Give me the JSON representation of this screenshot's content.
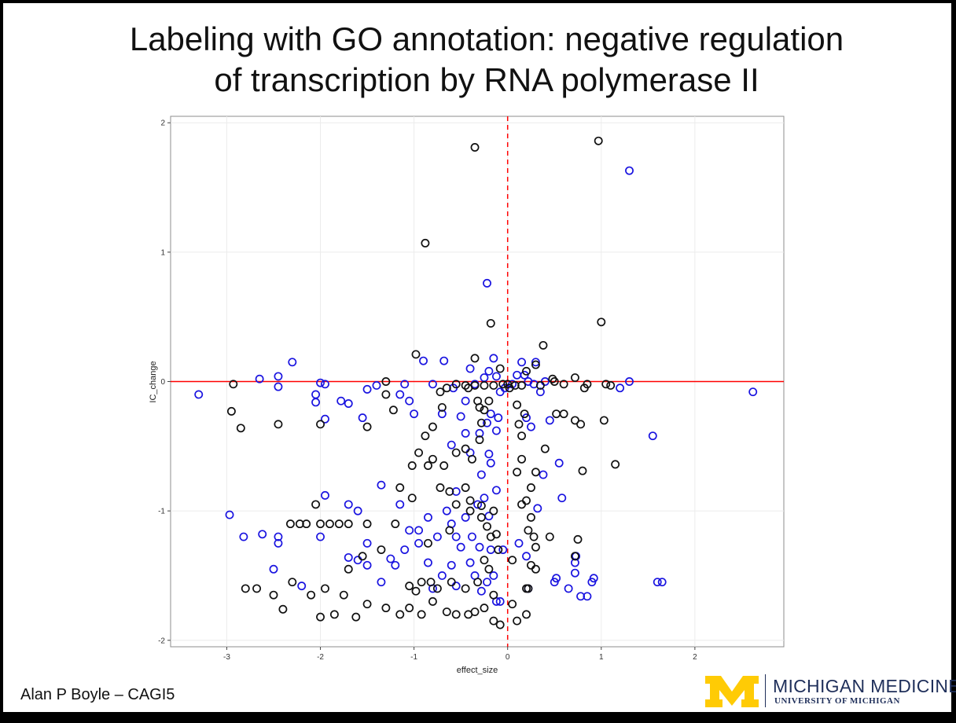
{
  "slide": {
    "title_line1": "Labeling with GO annotation: negative regulation",
    "title_line2": "of transcription by RNA polymerase II",
    "author": "Alan P Boyle – CAGI5",
    "logo": {
      "name": "MICHIGAN MEDICINE",
      "sub": "UNIVERSITY OF MICHIGAN",
      "mark": "M",
      "mark_color": "#FFCB05"
    }
  },
  "chart_data": {
    "type": "scatter",
    "xlabel": "effect_size",
    "ylabel": "IC_change",
    "xlim": [
      -3.6,
      2.95
    ],
    "ylim": [
      -2.05,
      2.05
    ],
    "xticks": [
      -3,
      -2,
      -1,
      0,
      1,
      2
    ],
    "yticks": [
      -2,
      -1,
      0,
      1,
      2
    ],
    "grid": true,
    "legend": "none",
    "reference_lines": [
      {
        "axis": "y",
        "value": 0,
        "style": "solid",
        "color": "#ff0000"
      },
      {
        "axis": "x",
        "value": 0,
        "style": "dashed",
        "color": "#ff0000"
      }
    ],
    "colors": {
      "annotated": "#1a14e0",
      "other": "#111111"
    },
    "series": [
      {
        "key": "annotated",
        "points": [
          [
            -3.3,
            -0.1
          ],
          [
            -2.3,
            0.15
          ],
          [
            -2.45,
            0.04
          ],
          [
            -2.65,
            0.02
          ],
          [
            -2.45,
            -0.04
          ],
          [
            -2.0,
            -0.01
          ],
          [
            -1.95,
            -0.02
          ],
          [
            -2.05,
            -0.1
          ],
          [
            -2.05,
            -0.16
          ],
          [
            -1.95,
            -0.29
          ],
          [
            -1.78,
            -0.15
          ],
          [
            -1.7,
            -0.17
          ],
          [
            -1.55,
            -0.28
          ],
          [
            -1.5,
            -0.06
          ],
          [
            -1.4,
            -0.03
          ],
          [
            -1.15,
            -0.1
          ],
          [
            -1.1,
            -0.02
          ],
          [
            -1.05,
            -0.15
          ],
          [
            -1.0,
            -0.25
          ],
          [
            -0.9,
            0.16
          ],
          [
            -0.8,
            -0.02
          ],
          [
            -0.68,
            0.16
          ],
          [
            -0.5,
            -0.27
          ],
          [
            -0.4,
            0.1
          ],
          [
            -0.25,
            0.03
          ],
          [
            -0.2,
            0.08
          ],
          [
            -0.15,
            0.18
          ],
          [
            -0.12,
            0.04
          ],
          [
            -0.08,
            -0.08
          ],
          [
            -0.18,
            -0.25
          ],
          [
            -0.12,
            -0.38
          ],
          [
            -0.3,
            -0.4
          ],
          [
            -0.22,
            -0.32
          ],
          [
            -0.45,
            -0.4
          ],
          [
            -0.6,
            -0.49
          ],
          [
            -0.2,
            -0.56
          ],
          [
            -0.18,
            -0.63
          ],
          [
            -0.28,
            -0.72
          ],
          [
            -0.12,
            -0.84
          ],
          [
            -0.32,
            -0.95
          ],
          [
            -0.2,
            -1.04
          ],
          [
            -0.45,
            -1.05
          ],
          [
            -0.55,
            -1.2
          ],
          [
            -0.6,
            -1.1
          ],
          [
            -0.75,
            -1.2
          ],
          [
            -0.85,
            -1.05
          ],
          [
            -0.95,
            -1.15
          ],
          [
            -1.05,
            -1.15
          ],
          [
            -1.15,
            -0.95
          ],
          [
            -1.35,
            -0.8
          ],
          [
            -1.5,
            -1.25
          ],
          [
            -1.6,
            -1.0
          ],
          [
            -1.7,
            -0.95
          ],
          [
            -1.95,
            -0.88
          ],
          [
            -2.0,
            -1.2
          ],
          [
            -2.45,
            -1.2
          ],
          [
            -2.45,
            -1.25
          ],
          [
            -2.62,
            -1.18
          ],
          [
            -2.82,
            -1.2
          ],
          [
            -2.97,
            -1.03
          ],
          [
            -2.5,
            -1.45
          ],
          [
            -2.2,
            -1.58
          ],
          [
            -1.7,
            -1.36
          ],
          [
            -1.6,
            -1.38
          ],
          [
            -1.5,
            -1.42
          ],
          [
            -1.35,
            -1.55
          ],
          [
            -1.25,
            -1.37
          ],
          [
            -1.2,
            -1.42
          ],
          [
            -1.1,
            -1.3
          ],
          [
            -0.95,
            -1.25
          ],
          [
            -0.85,
            -1.4
          ],
          [
            -0.8,
            -1.6
          ],
          [
            -0.7,
            -1.5
          ],
          [
            -0.6,
            -1.42
          ],
          [
            -0.55,
            -1.58
          ],
          [
            -0.4,
            -1.4
          ],
          [
            -0.35,
            -1.5
          ],
          [
            -0.28,
            -1.62
          ],
          [
            -0.22,
            -1.55
          ],
          [
            -0.15,
            -1.5
          ],
          [
            -0.12,
            -1.7
          ],
          [
            -0.08,
            -1.7
          ],
          [
            -0.05,
            -1.3
          ],
          [
            -0.18,
            -1.3
          ],
          [
            -0.3,
            -1.28
          ],
          [
            -0.5,
            -1.28
          ],
          [
            0.2,
            -0.28
          ],
          [
            0.25,
            -0.35
          ],
          [
            0.35,
            -0.08
          ],
          [
            0.4,
            0.0
          ],
          [
            0.3,
            0.15
          ],
          [
            0.15,
            0.15
          ],
          [
            0.1,
            0.05
          ],
          [
            0.05,
            -0.02
          ],
          [
            0.45,
            -0.3
          ],
          [
            0.55,
            -0.63
          ],
          [
            0.38,
            -0.72
          ],
          [
            0.32,
            -0.98
          ],
          [
            0.58,
            -0.9
          ],
          [
            0.12,
            -1.25
          ],
          [
            0.2,
            -1.35
          ],
          [
            0.22,
            -1.6
          ],
          [
            0.5,
            -1.55
          ],
          [
            0.52,
            -1.52
          ],
          [
            0.65,
            -1.6
          ],
          [
            0.72,
            -1.48
          ],
          [
            0.73,
            -1.35
          ],
          [
            0.72,
            -1.4
          ],
          [
            0.78,
            -1.66
          ],
          [
            0.85,
            -1.66
          ],
          [
            0.9,
            -1.55
          ],
          [
            0.92,
            -1.52
          ],
          [
            1.6,
            -1.55
          ],
          [
            1.65,
            -1.55
          ],
          [
            1.2,
            -0.05
          ],
          [
            1.3,
            0.0
          ],
          [
            1.55,
            -0.42
          ],
          [
            1.3,
            1.63
          ],
          [
            2.62,
            -0.08
          ],
          [
            -0.22,
            0.76
          ],
          [
            -0.4,
            -0.55
          ],
          [
            -0.25,
            -0.9
          ],
          [
            -0.38,
            -1.2
          ],
          [
            -0.55,
            -0.85
          ],
          [
            -0.65,
            -1.0
          ],
          [
            -0.7,
            -0.25
          ],
          [
            -0.1,
            -0.28
          ],
          [
            -0.03,
            -0.05
          ],
          [
            0.18,
            0.05
          ],
          [
            0.28,
            -0.02
          ],
          [
            0.22,
            0.0
          ],
          [
            -0.45,
            -0.15
          ],
          [
            -0.35,
            -0.02
          ],
          [
            -0.58,
            -0.05
          ]
        ]
      },
      {
        "key": "other",
        "points": [
          [
            -0.35,
            1.81
          ],
          [
            0.97,
            1.86
          ],
          [
            -0.88,
            1.07
          ],
          [
            -0.18,
            0.45
          ],
          [
            1.0,
            0.46
          ],
          [
            0.38,
            0.28
          ],
          [
            -0.98,
            0.21
          ],
          [
            -0.35,
            0.18
          ],
          [
            -0.08,
            0.1
          ],
          [
            0.3,
            0.13
          ],
          [
            0.2,
            0.08
          ],
          [
            0.48,
            0.02
          ],
          [
            0.5,
            0.0
          ],
          [
            0.6,
            -0.02
          ],
          [
            0.72,
            0.03
          ],
          [
            0.82,
            -0.05
          ],
          [
            0.85,
            -0.02
          ],
          [
            1.05,
            -0.02
          ],
          [
            1.1,
            -0.03
          ],
          [
            1.03,
            -0.3
          ],
          [
            0.78,
            -0.33
          ],
          [
            0.72,
            -0.3
          ],
          [
            0.6,
            -0.25
          ],
          [
            0.52,
            -0.25
          ],
          [
            1.15,
            -0.64
          ],
          [
            0.8,
            -0.69
          ],
          [
            0.4,
            -0.52
          ],
          [
            0.3,
            -0.7
          ],
          [
            0.25,
            -0.82
          ],
          [
            0.2,
            -0.92
          ],
          [
            0.1,
            -0.7
          ],
          [
            0.15,
            -0.6
          ],
          [
            0.15,
            -0.42
          ],
          [
            0.12,
            -0.33
          ],
          [
            0.18,
            -0.25
          ],
          [
            0.1,
            -0.18
          ],
          [
            -2.93,
            -0.02
          ],
          [
            -2.95,
            -0.23
          ],
          [
            -2.85,
            -0.36
          ],
          [
            -2.45,
            -0.33
          ],
          [
            -2.0,
            -0.33
          ],
          [
            -1.5,
            -0.35
          ],
          [
            -1.3,
            0.0
          ],
          [
            -1.22,
            -0.22
          ],
          [
            -1.3,
            -0.1
          ],
          [
            -0.95,
            -0.55
          ],
          [
            -0.88,
            -0.42
          ],
          [
            -0.8,
            -0.35
          ],
          [
            -0.8,
            -0.6
          ],
          [
            -0.68,
            -0.65
          ],
          [
            -0.55,
            -0.55
          ],
          [
            -0.45,
            -0.52
          ],
          [
            -0.38,
            -0.6
          ],
          [
            -0.3,
            -0.45
          ],
          [
            -0.28,
            -0.32
          ],
          [
            -0.25,
            -0.22
          ],
          [
            -0.32,
            -0.15
          ],
          [
            -0.42,
            -0.05
          ],
          [
            -0.55,
            -0.02
          ],
          [
            -0.65,
            -0.05
          ],
          [
            -0.72,
            -0.08
          ],
          [
            -0.7,
            -0.2
          ],
          [
            -0.3,
            -0.2
          ],
          [
            -0.2,
            -0.15
          ],
          [
            -0.05,
            -0.02
          ],
          [
            -1.02,
            -0.65
          ],
          [
            -0.85,
            -0.65
          ],
          [
            -0.62,
            -0.85
          ],
          [
            -0.45,
            -0.82
          ],
          [
            -0.4,
            -0.92
          ],
          [
            -0.28,
            -0.96
          ],
          [
            -0.22,
            -1.12
          ],
          [
            -0.18,
            -1.2
          ],
          [
            -0.12,
            -1.18
          ],
          [
            -0.1,
            -1.3
          ],
          [
            -0.25,
            -1.38
          ],
          [
            -0.4,
            -1.0
          ],
          [
            -0.55,
            -0.95
          ],
          [
            -0.72,
            -0.82
          ],
          [
            -1.02,
            -0.9
          ],
          [
            -1.15,
            -0.82
          ],
          [
            -1.2,
            -1.1
          ],
          [
            -1.5,
            -1.1
          ],
          [
            -1.7,
            -1.1
          ],
          [
            -1.8,
            -1.1
          ],
          [
            -2.0,
            -1.1
          ],
          [
            -2.15,
            -1.1
          ],
          [
            -2.22,
            -1.1
          ],
          [
            -2.32,
            -1.1
          ],
          [
            -2.05,
            -0.95
          ],
          [
            -1.9,
            -1.1
          ],
          [
            -0.92,
            -1.55
          ],
          [
            -0.82,
            -1.55
          ],
          [
            -0.75,
            -1.6
          ],
          [
            -0.6,
            -1.55
          ],
          [
            -0.45,
            -1.6
          ],
          [
            -0.32,
            -1.55
          ],
          [
            -0.2,
            -1.45
          ],
          [
            -0.15,
            -1.65
          ],
          [
            -0.25,
            -1.75
          ],
          [
            -0.35,
            -1.78
          ],
          [
            -0.42,
            -1.8
          ],
          [
            -0.55,
            -1.8
          ],
          [
            -0.65,
            -1.78
          ],
          [
            -0.8,
            -1.7
          ],
          [
            -0.92,
            -1.8
          ],
          [
            -1.05,
            -1.75
          ],
          [
            -1.15,
            -1.8
          ],
          [
            -1.3,
            -1.75
          ],
          [
            -1.5,
            -1.72
          ],
          [
            -1.62,
            -1.82
          ],
          [
            -1.75,
            -1.65
          ],
          [
            -1.85,
            -1.8
          ],
          [
            -2.0,
            -1.82
          ],
          [
            -2.1,
            -1.65
          ],
          [
            -2.4,
            -1.76
          ],
          [
            -2.5,
            -1.65
          ],
          [
            -2.68,
            -1.6
          ],
          [
            -2.8,
            -1.6
          ],
          [
            -2.3,
            -1.55
          ],
          [
            -1.95,
            -1.6
          ],
          [
            -1.7,
            -1.45
          ],
          [
            -1.55,
            -1.35
          ],
          [
            -1.35,
            -1.3
          ],
          [
            -1.05,
            -1.58
          ],
          [
            -0.98,
            -1.62
          ],
          [
            -0.15,
            -1.85
          ],
          [
            -0.08,
            -1.88
          ],
          [
            0.05,
            -1.72
          ],
          [
            0.1,
            -1.85
          ],
          [
            0.2,
            -1.8
          ],
          [
            0.2,
            -1.6
          ],
          [
            0.22,
            -1.6
          ],
          [
            0.3,
            -1.45
          ],
          [
            0.25,
            -1.42
          ],
          [
            0.3,
            -1.28
          ],
          [
            0.28,
            -1.2
          ],
          [
            0.22,
            -1.15
          ],
          [
            0.45,
            -1.2
          ],
          [
            0.25,
            -1.05
          ],
          [
            0.15,
            -0.95
          ],
          [
            0.75,
            -1.22
          ],
          [
            0.72,
            -1.35
          ],
          [
            0.05,
            -1.38
          ],
          [
            -0.15,
            -1.0
          ],
          [
            -0.28,
            -1.05
          ],
          [
            -0.62,
            -1.15
          ],
          [
            -0.85,
            -1.25
          ],
          [
            0.02,
            -0.05
          ],
          [
            0.0,
            -0.02
          ],
          [
            0.08,
            -0.03
          ],
          [
            0.15,
            -0.03
          ],
          [
            0.35,
            -0.03
          ],
          [
            -0.15,
            -0.03
          ],
          [
            -0.25,
            -0.03
          ],
          [
            -0.35,
            -0.03
          ],
          [
            -0.45,
            -0.03
          ]
        ]
      }
    ]
  }
}
